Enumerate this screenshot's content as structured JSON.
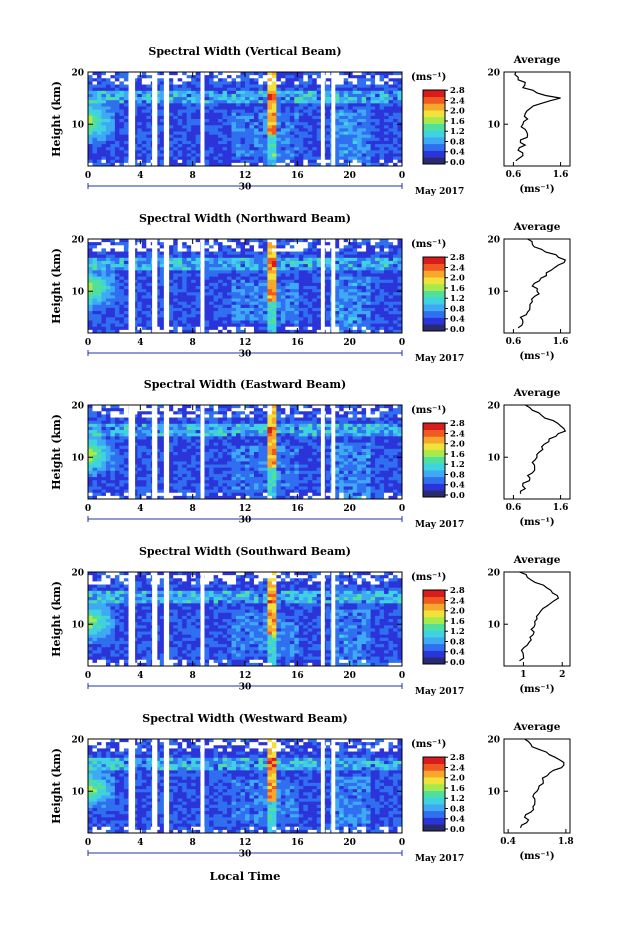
{
  "figure": {
    "x_axis_label": "Local Time",
    "date_label": "May 2017",
    "day_label": "30"
  },
  "colorbar": {
    "unit": "(ms⁻¹)",
    "tick_labels": [
      "0.0",
      "0.4",
      "0.8",
      "1.2",
      "1.6",
      "2.0",
      "2.4",
      "2.8"
    ],
    "colors": [
      "#2a2a6e",
      "#2b34d8",
      "#2f6ff0",
      "#3fa9f5",
      "#3fd2e0",
      "#4fe0a0",
      "#a6ea4c",
      "#f0e23a",
      "#f7a72c",
      "#f05a22",
      "#d81c1c"
    ]
  },
  "chart_data": [
    {
      "type": "heatmap",
      "title": "Spectral Width (Vertical Beam)",
      "ylabel": "Height (km)",
      "x_ticks": [
        "0",
        "4",
        "8",
        "12",
        "16",
        "20",
        "0"
      ],
      "y_ticks": [
        "10",
        "20"
      ],
      "xlim": [
        0,
        24
      ],
      "ylim": [
        2,
        20
      ],
      "avg_profile": {
        "title": "Average",
        "xlabel": "(ms⁻¹)",
        "x_ticks": [
          "0.6",
          "1.6"
        ],
        "xlim": [
          0.4,
          1.8
        ],
        "y_ticks": [
          "10",
          "20"
        ],
        "height_km": [
          3,
          4,
          5,
          6,
          7,
          8,
          9,
          10,
          11,
          12,
          13,
          14,
          15,
          16,
          17,
          18,
          19,
          20
        ],
        "width_ms": [
          0.65,
          0.8,
          0.7,
          0.85,
          0.75,
          0.9,
          0.85,
          0.8,
          0.9,
          0.85,
          0.95,
          1.2,
          1.6,
          1.1,
          0.8,
          0.85,
          0.7,
          0.65
        ]
      }
    },
    {
      "type": "heatmap",
      "title": "Spectral Width (Northward Beam)",
      "ylabel": "Height (km)",
      "x_ticks": [
        "0",
        "4",
        "8",
        "12",
        "16",
        "20",
        "0"
      ],
      "y_ticks": [
        "10",
        "20"
      ],
      "xlim": [
        0,
        24
      ],
      "ylim": [
        2,
        20
      ],
      "avg_profile": {
        "title": "Average",
        "xlabel": "(ms⁻¹)",
        "x_ticks": [
          "0.6",
          "1.6"
        ],
        "xlim": [
          0.4,
          1.8
        ],
        "y_ticks": [
          "10",
          "20"
        ],
        "height_km": [
          3,
          4,
          5,
          6,
          7,
          8,
          9,
          10,
          11,
          12,
          13,
          14,
          15,
          16,
          17,
          18,
          19,
          20
        ],
        "width_ms": [
          0.7,
          0.8,
          0.75,
          0.9,
          0.95,
          1.0,
          1.05,
          1.1,
          1.0,
          1.15,
          1.3,
          1.4,
          1.55,
          1.7,
          1.5,
          1.2,
          1.0,
          0.9
        ]
      }
    },
    {
      "type": "heatmap",
      "title": "Spectral Width (Eastward Beam)",
      "ylabel": "Height (km)",
      "x_ticks": [
        "0",
        "4",
        "8",
        "12",
        "16",
        "20",
        "0"
      ],
      "y_ticks": [
        "10",
        "20"
      ],
      "xlim": [
        0,
        24
      ],
      "ylim": [
        2,
        20
      ],
      "avg_profile": {
        "title": "Average",
        "xlabel": "(ms⁻¹)",
        "x_ticks": [
          "0.6",
          "1.6"
        ],
        "xlim": [
          0.4,
          1.8
        ],
        "y_ticks": [
          "10",
          "20"
        ],
        "height_km": [
          3,
          4,
          5,
          6,
          7,
          8,
          9,
          10,
          11,
          12,
          13,
          14,
          15,
          16,
          17,
          18,
          19,
          20
        ],
        "width_ms": [
          0.75,
          0.85,
          0.8,
          0.95,
          1.0,
          1.05,
          1.0,
          1.1,
          1.15,
          1.2,
          1.35,
          1.5,
          1.7,
          1.6,
          1.45,
          1.2,
          1.0,
          0.85
        ]
      }
    },
    {
      "type": "heatmap",
      "title": "Spectral Width (Southward Beam)",
      "ylabel": "Height (km)",
      "x_ticks": [
        "0",
        "4",
        "8",
        "12",
        "16",
        "20",
        "0"
      ],
      "y_ticks": [
        "10",
        "20"
      ],
      "xlim": [
        0,
        24
      ],
      "ylim": [
        2,
        20
      ],
      "avg_profile": {
        "title": "Average",
        "xlabel": "(ms⁻¹)",
        "x_ticks": [
          "1",
          "2"
        ],
        "xlim": [
          0.5,
          2.2
        ],
        "y_ticks": [
          "10",
          "20"
        ],
        "height_km": [
          3,
          4,
          5,
          6,
          7,
          8,
          9,
          10,
          11,
          12,
          13,
          14,
          15,
          16,
          17,
          18,
          19,
          20
        ],
        "width_ms": [
          0.9,
          1.0,
          0.95,
          1.1,
          1.2,
          1.25,
          1.2,
          1.3,
          1.35,
          1.4,
          1.5,
          1.7,
          1.9,
          1.75,
          1.6,
          1.3,
          1.1,
          0.9
        ]
      }
    },
    {
      "type": "heatmap",
      "title": "Spectral Width (Westward Beam)",
      "ylabel": "Height (km)",
      "x_ticks": [
        "0",
        "4",
        "8",
        "12",
        "16",
        "20",
        "0"
      ],
      "y_ticks": [
        "10",
        "20"
      ],
      "xlim": [
        0,
        24
      ],
      "ylim": [
        2,
        20
      ],
      "avg_profile": {
        "title": "Average",
        "xlabel": "(ms⁻¹)",
        "x_ticks": [
          "0.4",
          "1.8"
        ],
        "xlim": [
          0.3,
          1.9
        ],
        "y_ticks": [
          "10",
          "20"
        ],
        "height_km": [
          3,
          4,
          5,
          6,
          7,
          8,
          9,
          10,
          11,
          12,
          13,
          14,
          15,
          16,
          17,
          18,
          19,
          20
        ],
        "width_ms": [
          0.7,
          0.85,
          0.8,
          0.95,
          1.0,
          1.05,
          1.0,
          1.1,
          1.15,
          1.25,
          1.35,
          1.5,
          1.75,
          1.65,
          1.4,
          1.15,
          0.95,
          0.8
        ]
      }
    }
  ]
}
